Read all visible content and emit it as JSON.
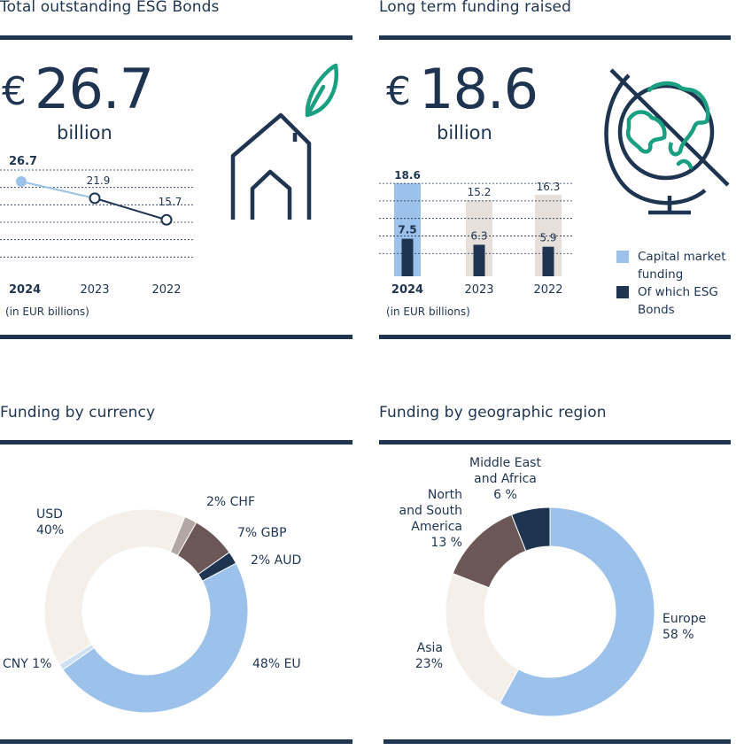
{
  "colors": {
    "navy": "#1e3450",
    "light_blue": "#9cc1ea",
    "pale_blue": "#b7d1ee",
    "beige": "#e6dfda",
    "cream": "#f4efe9",
    "brown": "#6b5755",
    "taupe": "#b3a7a5",
    "green": "#1aa081",
    "grid": "#1e3450"
  },
  "icons": {
    "house": "house-leaf-icon",
    "globe": "globe-icon"
  },
  "esg_bonds": {
    "title": "Total outstanding ESG Bonds",
    "currency": "€",
    "value": "26.7",
    "unit": "billion",
    "note": "(in EUR billions)"
  },
  "funding": {
    "title": "Long term funding raised",
    "currency": "€",
    "value": "18.6",
    "unit": "billion",
    "note": "(in EUR billions)",
    "legend": [
      {
        "label": "Capital market funding",
        "color": "#9cc1ea"
      },
      {
        "label": "Of which ESG Bonds",
        "color": "#1e3450"
      }
    ]
  },
  "currency": {
    "title": "Funding by currency"
  },
  "region": {
    "title": "Funding by geographic region"
  },
  "chart_data": [
    {
      "type": "line",
      "x": [
        "2024",
        "2023",
        "2022"
      ],
      "series": [
        {
          "values": [
            26.7,
            21.9,
            15.7
          ]
        }
      ],
      "data_labels": [
        "26.7",
        "21.9",
        "15.7"
      ],
      "ylim": [
        0,
        30
      ],
      "grid": true
    },
    {
      "type": "bar",
      "categories": [
        "2024",
        "2023",
        "2022"
      ],
      "series": [
        {
          "name": "Capital market funding",
          "values": [
            18.6,
            15.2,
            16.3
          ],
          "labels": [
            "18.6",
            "15.2",
            "16.3"
          ]
        },
        {
          "name": "Of which ESG Bonds",
          "values": [
            7.5,
            6.3,
            5.9
          ],
          "labels": [
            "7.5",
            "6.3",
            "5.9"
          ]
        }
      ],
      "ylim": [
        0,
        20
      ],
      "grid": true,
      "legend": "right"
    },
    {
      "type": "pie",
      "donut": true,
      "slices": [
        {
          "name": "EU",
          "value": 48,
          "label": "48% EU",
          "color": "#9cc1ea"
        },
        {
          "name": "CNY",
          "value": 1,
          "label": "CNY 1%",
          "color": "#cfe0f3"
        },
        {
          "name": "USD",
          "value": 40,
          "label": "USD\n40%",
          "color": "#f4efe9"
        },
        {
          "name": "CHF",
          "value": 2,
          "label": "2% CHF",
          "color": "#b3a7a5"
        },
        {
          "name": "GBP",
          "value": 7,
          "label": "7% GBP",
          "color": "#6b5755"
        },
        {
          "name": "AUD",
          "value": 2,
          "label": "2% AUD",
          "color": "#1e3450"
        }
      ]
    },
    {
      "type": "pie",
      "donut": true,
      "slices": [
        {
          "name": "Europe",
          "value": 58,
          "label": "Europe\n58 %",
          "color": "#9cc1ea"
        },
        {
          "name": "Asia",
          "value": 23,
          "label": "Asia\n23%",
          "color": "#f4efe9"
        },
        {
          "name": "North and South America",
          "value": 13,
          "label": "North\nand South\nAmerica\n13 %",
          "color": "#6b5755"
        },
        {
          "name": "Middle East and Africa",
          "value": 6,
          "label": "Middle East\nand Africa\n6 %",
          "color": "#1e3450"
        }
      ]
    }
  ]
}
